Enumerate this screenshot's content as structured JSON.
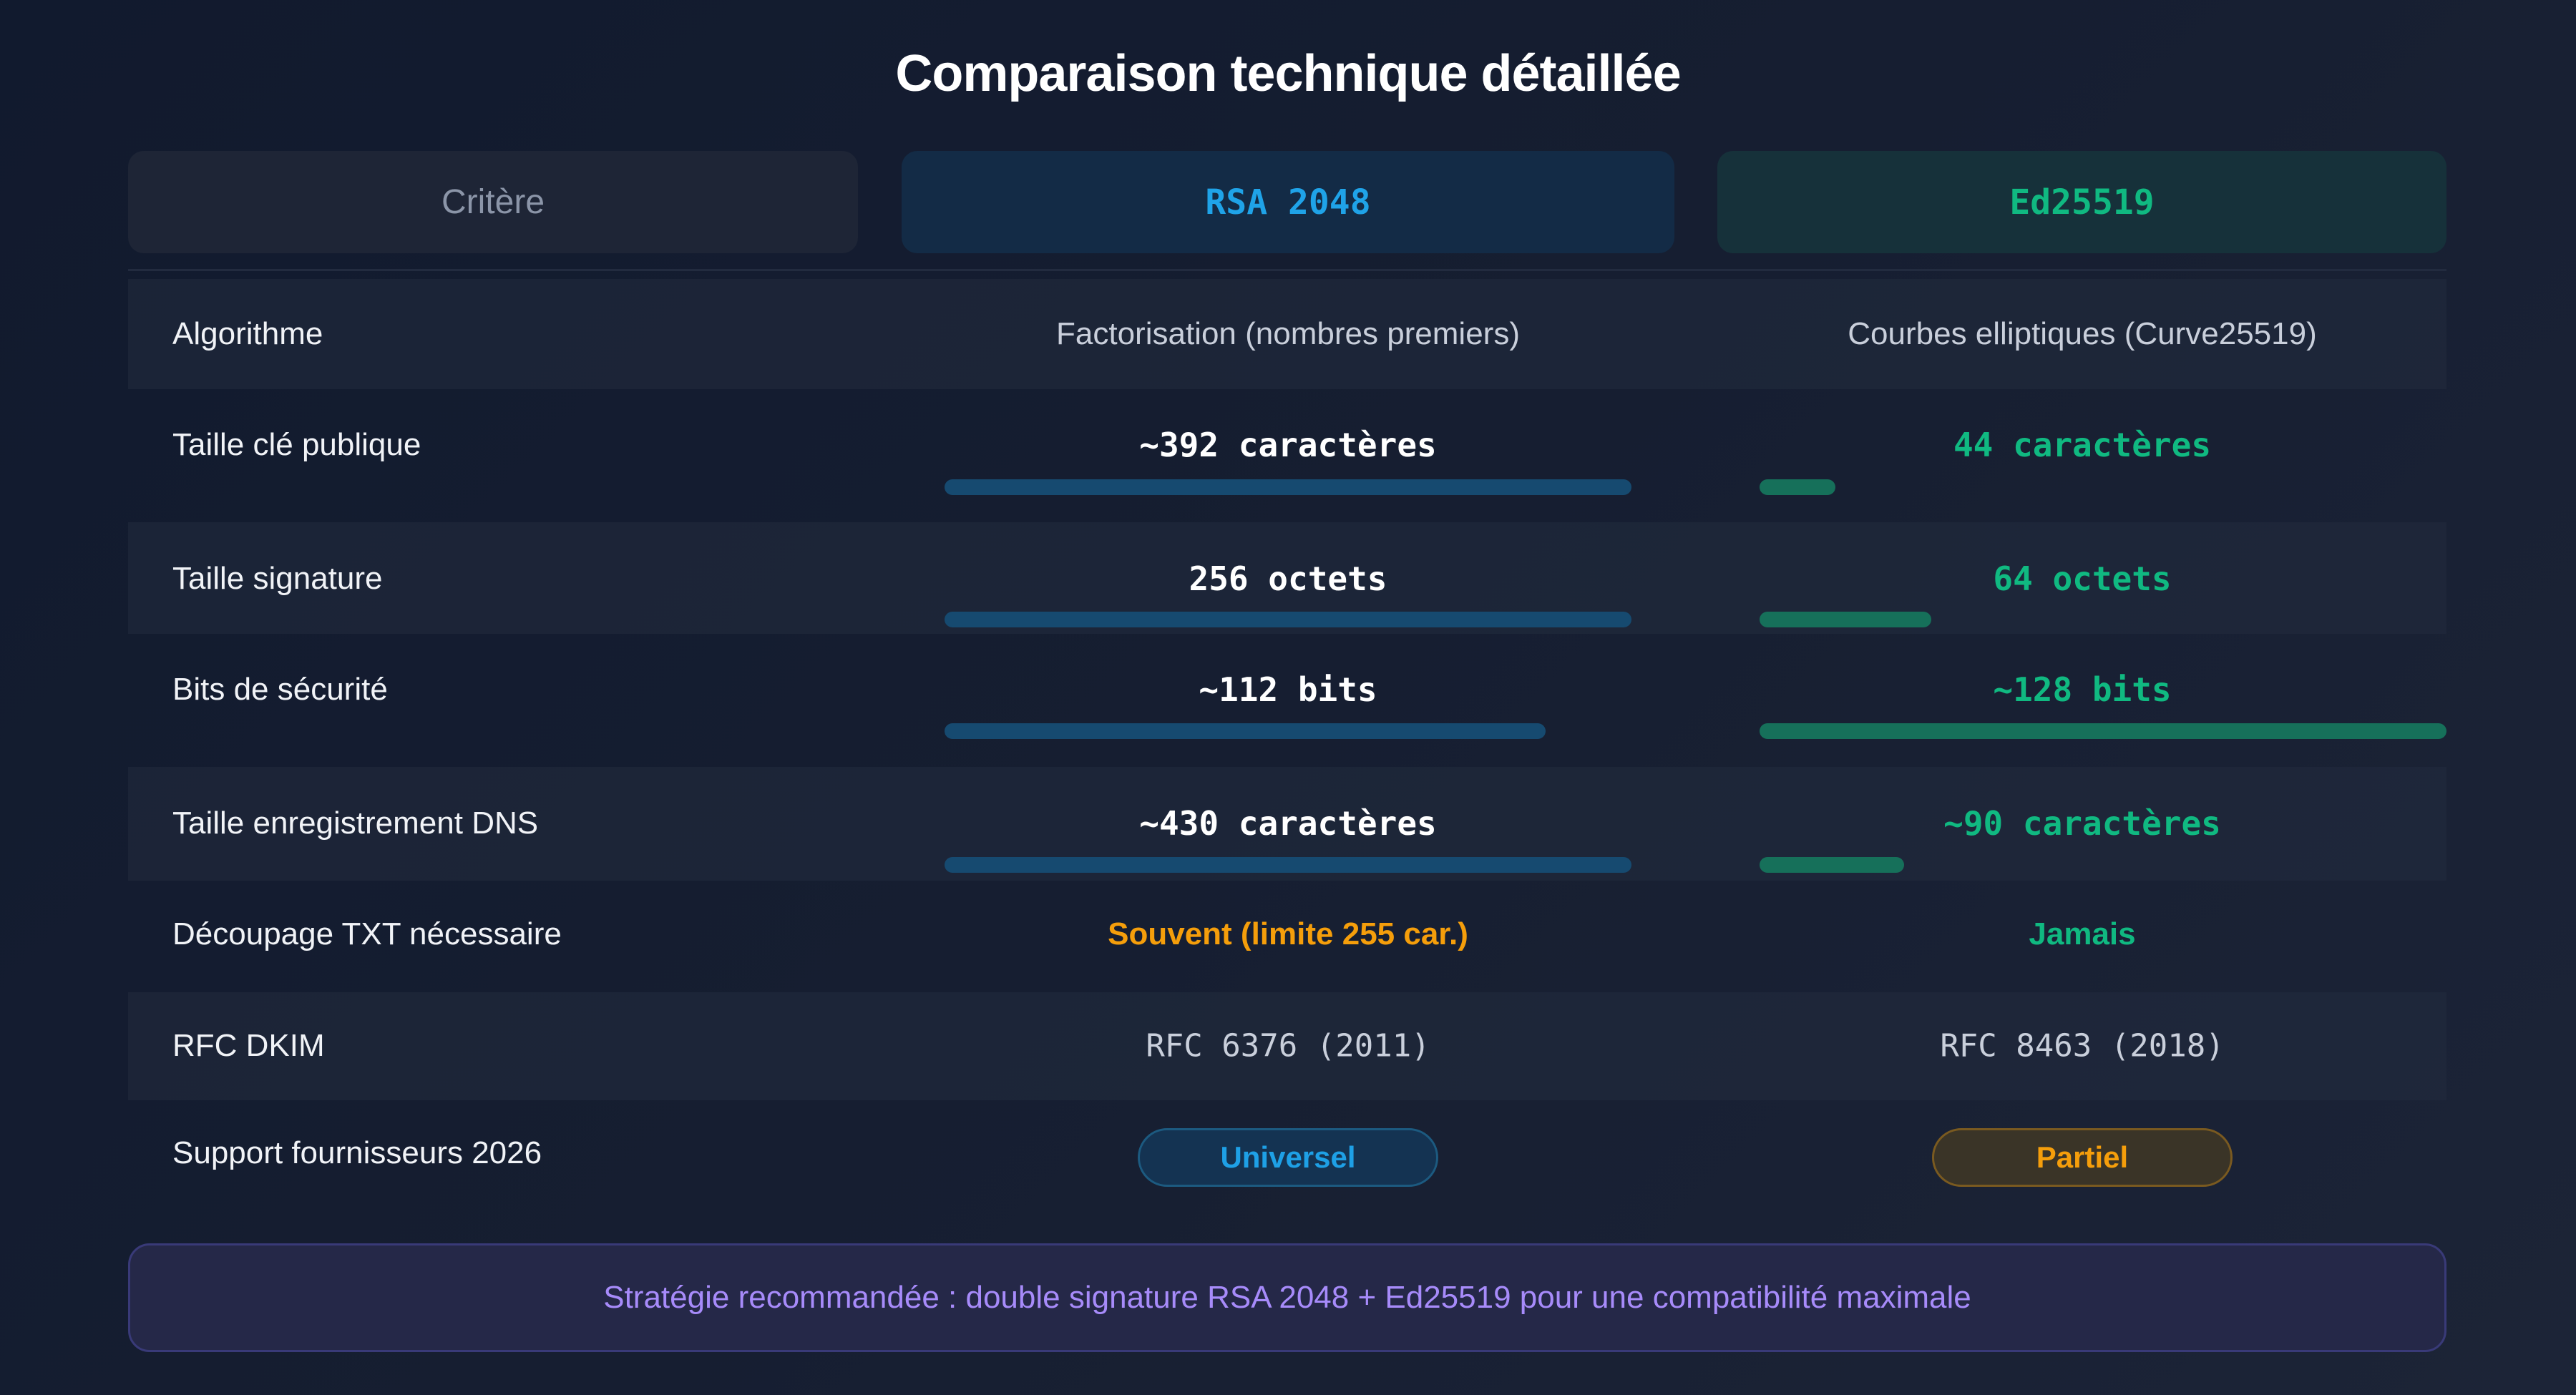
{
  "title": "Comparaison technique détaillée",
  "headers": [
    "Critère",
    "RSA 2048",
    "Ed25519"
  ],
  "colors": {
    "rsa": "#1fa3e8",
    "ed": "#10b981",
    "warning": "#f59e0b",
    "note": "#a78bfa"
  },
  "rows": [
    {
      "label": "Algorithme",
      "rsa": "Factorisation (nombres premiers)",
      "ed": "Courbes elliptiques (Curve25519)"
    },
    {
      "label": "Taille clé publique",
      "rsa": "~392 caractères",
      "ed": "44 caractères",
      "rsa_bar_pct": 100,
      "ed_bar_pct": 11
    },
    {
      "label": "Taille signature",
      "rsa": "256 octets",
      "ed": "64 octets",
      "rsa_bar_pct": 100,
      "ed_bar_pct": 25
    },
    {
      "label": "Bits de sécurité",
      "rsa": "~112 bits",
      "ed": "~128 bits",
      "rsa_bar_pct": 87.5,
      "ed_bar_pct": 100
    },
    {
      "label": "Taille enregistrement DNS",
      "rsa": "~430 caractères",
      "ed": "~90 caractères",
      "rsa_bar_pct": 100,
      "ed_bar_pct": 21
    },
    {
      "label": "Découpage TXT nécessaire",
      "rsa": "Souvent (limite 255 car.)",
      "ed": "Jamais"
    },
    {
      "label": "RFC DKIM",
      "rsa": "RFC 6376 (2011)",
      "ed": "RFC 8463 (2018)"
    },
    {
      "label": "Support fournisseurs 2026",
      "rsa": "Universel",
      "ed": "Partiel"
    }
  ],
  "note": "Stratégie recommandée : double signature RSA 2048 + Ed25519 pour une compatibilité maximale"
}
